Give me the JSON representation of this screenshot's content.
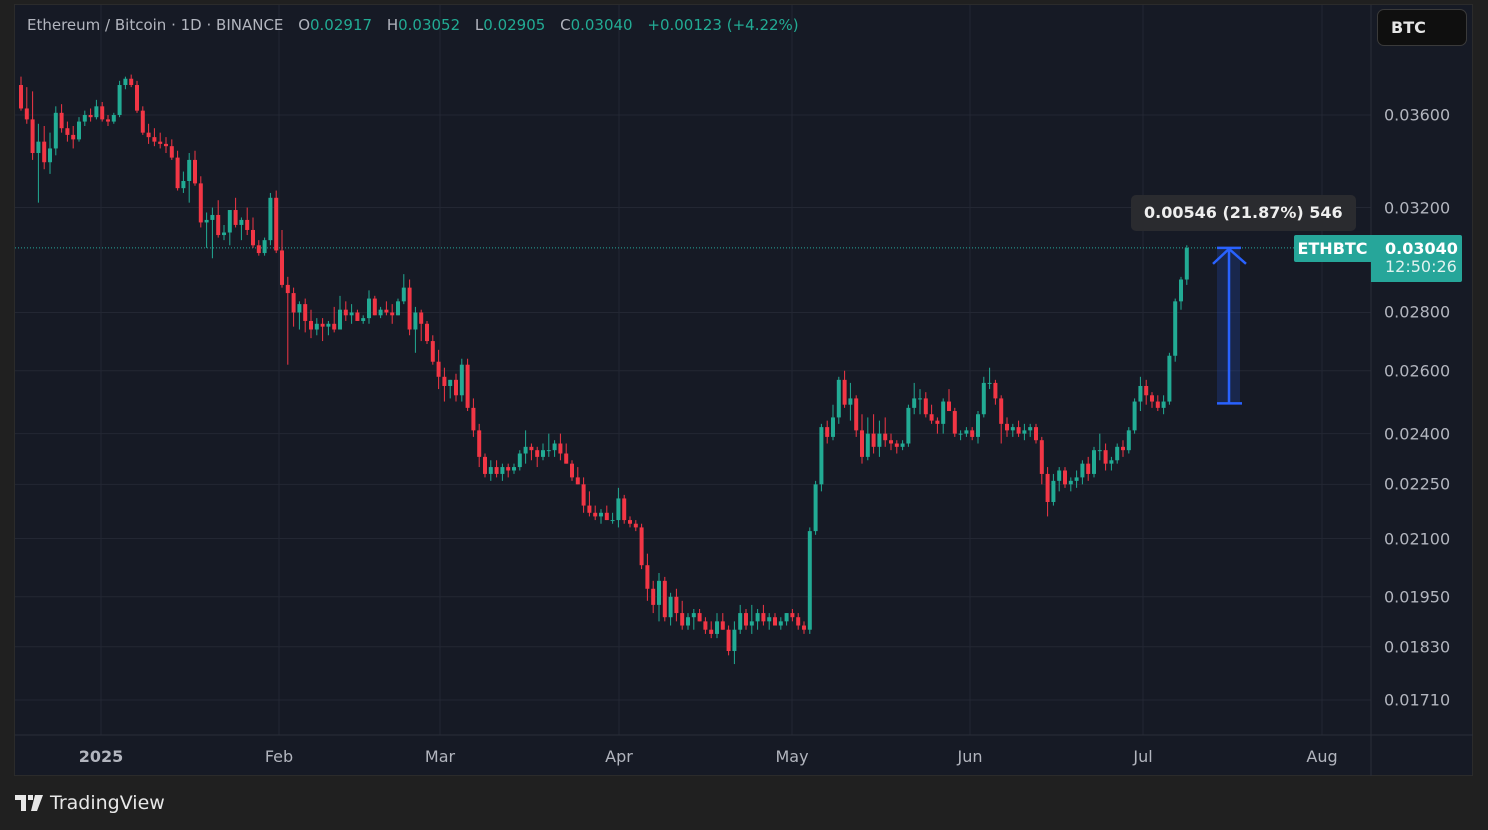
{
  "header": {
    "symbol_name": "Ethereum / Bitcoin",
    "interval": "1D",
    "exchange": "BINANCE",
    "separator": " · ",
    "open_label": "O",
    "open": "0.02917",
    "high_label": "H",
    "high": "0.03052",
    "low_label": "L",
    "low": "0.02905",
    "close_label": "C",
    "close": "0.03040",
    "change": "+0.00123 (+4.22%)"
  },
  "currency_button": {
    "label": "BTC"
  },
  "price_axis": {
    "ticks": [
      "0.03600",
      "0.03200",
      "0.02800",
      "0.02600",
      "0.02400",
      "0.02250",
      "0.02100",
      "0.01950",
      "0.01830",
      "0.01710"
    ]
  },
  "time_axis": {
    "ticks": [
      {
        "label": "2025",
        "bold": true
      },
      {
        "label": "Feb",
        "bold": false
      },
      {
        "label": "Mar",
        "bold": false
      },
      {
        "label": "Apr",
        "bold": false
      },
      {
        "label": "May",
        "bold": false
      },
      {
        "label": "Jun",
        "bold": false
      },
      {
        "label": "Jul",
        "bold": false
      },
      {
        "label": "Aug",
        "bold": false
      }
    ]
  },
  "last_price": {
    "symbol": "ETHBTC",
    "price": "0.03040",
    "countdown": "12:50:26"
  },
  "measure_tool": {
    "label": "0.00546 (21.87%) 546",
    "from_price": 0.02494,
    "to_price": 0.0304
  },
  "branding": {
    "label": "TradingView"
  },
  "colors": {
    "up": "#22ab94",
    "down": "#f23645",
    "background": "#161a25",
    "grid": "#232733",
    "measure": "#2962ff",
    "last_price": "#26a69a"
  },
  "chart_data": {
    "type": "candlestick",
    "title": "Ethereum / Bitcoin · 1D · BINANCE",
    "xlabel": "",
    "ylabel": "BTC",
    "ylim": [
      0.0165,
      0.0385
    ],
    "y_scale": "log",
    "grid": true,
    "x_ticks": [
      "2025",
      "Feb",
      "Mar",
      "Apr",
      "May",
      "Jun",
      "Jul",
      "Aug"
    ],
    "y_ticks": [
      0.036,
      0.032,
      0.028,
      0.026,
      0.024,
      0.0225,
      0.021,
      0.0195,
      0.0183,
      0.0171
    ],
    "start_date": "2024-12-17",
    "columns": [
      "open",
      "high",
      "low",
      "close"
    ],
    "ohlc": [
      [
        0.0374,
        0.0378,
        0.0362,
        0.0363
      ],
      [
        0.0363,
        0.0373,
        0.0356,
        0.0358
      ],
      [
        0.0358,
        0.0371,
        0.034,
        0.0343
      ],
      [
        0.0343,
        0.0356,
        0.0322,
        0.0348
      ],
      [
        0.0348,
        0.0355,
        0.0336,
        0.0339
      ],
      [
        0.0339,
        0.0352,
        0.0334,
        0.0345
      ],
      [
        0.0345,
        0.0364,
        0.0342,
        0.0361
      ],
      [
        0.0361,
        0.0365,
        0.0352,
        0.0354
      ],
      [
        0.0354,
        0.0357,
        0.0348,
        0.0351
      ],
      [
        0.0351,
        0.0355,
        0.0345,
        0.0349
      ],
      [
        0.0349,
        0.0359,
        0.0348,
        0.0357
      ],
      [
        0.0357,
        0.0362,
        0.0355,
        0.036
      ],
      [
        0.036,
        0.0363,
        0.0357,
        0.0359
      ],
      [
        0.0359,
        0.0367,
        0.0358,
        0.0364
      ],
      [
        0.0364,
        0.0366,
        0.0357,
        0.0358
      ],
      [
        0.0358,
        0.036,
        0.0355,
        0.0357
      ],
      [
        0.0357,
        0.0361,
        0.0356,
        0.036
      ],
      [
        0.036,
        0.0376,
        0.0359,
        0.0374
      ],
      [
        0.0374,
        0.0378,
        0.0372,
        0.0377
      ],
      [
        0.0377,
        0.0379,
        0.0373,
        0.0374
      ],
      [
        0.0374,
        0.0376,
        0.0361,
        0.0362
      ],
      [
        0.0362,
        0.0364,
        0.0351,
        0.0352
      ],
      [
        0.0352,
        0.0356,
        0.0347,
        0.035
      ],
      [
        0.035,
        0.0354,
        0.0346,
        0.0348
      ],
      [
        0.0348,
        0.0352,
        0.0345,
        0.0347
      ],
      [
        0.0347,
        0.035,
        0.0343,
        0.0346
      ],
      [
        0.0346,
        0.0349,
        0.034,
        0.0341
      ],
      [
        0.0341,
        0.0344,
        0.0327,
        0.0328
      ],
      [
        0.0328,
        0.0335,
        0.0326,
        0.0331
      ],
      [
        0.0331,
        0.0343,
        0.0322,
        0.034
      ],
      [
        0.034,
        0.0344,
        0.0329,
        0.033
      ],
      [
        0.033,
        0.0333,
        0.0312,
        0.0314
      ],
      [
        0.0314,
        0.0318,
        0.0304,
        0.0315
      ],
      [
        0.0315,
        0.032,
        0.03,
        0.0317
      ],
      [
        0.0317,
        0.0323,
        0.0308,
        0.0309
      ],
      [
        0.0309,
        0.0313,
        0.0307,
        0.031
      ],
      [
        0.031,
        0.0319,
        0.0305,
        0.0319
      ],
      [
        0.0319,
        0.0324,
        0.0312,
        0.0313
      ],
      [
        0.0313,
        0.0316,
        0.0307,
        0.0315
      ],
      [
        0.0315,
        0.032,
        0.0309,
        0.0311
      ],
      [
        0.0311,
        0.0316,
        0.0304,
        0.0305
      ],
      [
        0.0305,
        0.0307,
        0.0301,
        0.0302
      ],
      [
        0.0302,
        0.0308,
        0.0301,
        0.0307
      ],
      [
        0.0307,
        0.0326,
        0.0305,
        0.0324
      ],
      [
        0.0324,
        0.0327,
        0.0302,
        0.0303
      ],
      [
        0.0303,
        0.0311,
        0.0289,
        0.029
      ],
      [
        0.029,
        0.0293,
        0.0262,
        0.0287
      ],
      [
        0.0287,
        0.0289,
        0.0275,
        0.028
      ],
      [
        0.028,
        0.0284,
        0.0274,
        0.0283
      ],
      [
        0.0283,
        0.0285,
        0.0273,
        0.0277
      ],
      [
        0.0277,
        0.0281,
        0.0271,
        0.0274
      ],
      [
        0.0274,
        0.0278,
        0.0272,
        0.0276
      ],
      [
        0.0276,
        0.0278,
        0.027,
        0.0275
      ],
      [
        0.0275,
        0.0277,
        0.0272,
        0.0276
      ],
      [
        0.0276,
        0.0282,
        0.0273,
        0.0274
      ],
      [
        0.0274,
        0.0286,
        0.0274,
        0.0281
      ],
      [
        0.0281,
        0.0284,
        0.0277,
        0.0279
      ],
      [
        0.0279,
        0.0283,
        0.0276,
        0.028
      ],
      [
        0.028,
        0.0281,
        0.0277,
        0.0277
      ],
      [
        0.0277,
        0.0279,
        0.0276,
        0.0278
      ],
      [
        0.0278,
        0.0288,
        0.0276,
        0.0285
      ],
      [
        0.0285,
        0.0286,
        0.0279,
        0.0279
      ],
      [
        0.0279,
        0.0282,
        0.0278,
        0.0281
      ],
      [
        0.0281,
        0.0284,
        0.0279,
        0.028
      ],
      [
        0.028,
        0.0283,
        0.0276,
        0.0279
      ],
      [
        0.0279,
        0.0285,
        0.0279,
        0.0284
      ],
      [
        0.0284,
        0.0294,
        0.0283,
        0.0289
      ],
      [
        0.0289,
        0.0292,
        0.0272,
        0.0274
      ],
      [
        0.0274,
        0.0282,
        0.0266,
        0.028
      ],
      [
        0.028,
        0.0281,
        0.027,
        0.0276
      ],
      [
        0.0276,
        0.0277,
        0.0269,
        0.027
      ],
      [
        0.027,
        0.0272,
        0.0262,
        0.0263
      ],
      [
        0.0263,
        0.0267,
        0.0254,
        0.0258
      ],
      [
        0.0258,
        0.0261,
        0.025,
        0.0255
      ],
      [
        0.0255,
        0.0257,
        0.0251,
        0.0257
      ],
      [
        0.0257,
        0.0259,
        0.025,
        0.0252
      ],
      [
        0.0252,
        0.0264,
        0.025,
        0.0262
      ],
      [
        0.0262,
        0.0264,
        0.0247,
        0.0248
      ],
      [
        0.0248,
        0.0251,
        0.0239,
        0.0241
      ],
      [
        0.0241,
        0.0243,
        0.023,
        0.0233
      ],
      [
        0.0233,
        0.0234,
        0.0227,
        0.0228
      ],
      [
        0.0228,
        0.0232,
        0.0226,
        0.023
      ],
      [
        0.023,
        0.0232,
        0.0227,
        0.0228
      ],
      [
        0.0228,
        0.0231,
        0.0226,
        0.023
      ],
      [
        0.023,
        0.0231,
        0.0227,
        0.0229
      ],
      [
        0.0229,
        0.0231,
        0.0228,
        0.023
      ],
      [
        0.023,
        0.0235,
        0.0229,
        0.0234
      ],
      [
        0.0234,
        0.0241,
        0.0231,
        0.0236
      ],
      [
        0.0236,
        0.0237,
        0.0232,
        0.0235
      ],
      [
        0.0235,
        0.0236,
        0.023,
        0.0233
      ],
      [
        0.0233,
        0.0237,
        0.0232,
        0.0235
      ],
      [
        0.0235,
        0.024,
        0.0233,
        0.0235
      ],
      [
        0.0235,
        0.0238,
        0.0233,
        0.0237
      ],
      [
        0.0237,
        0.024,
        0.0232,
        0.0234
      ],
      [
        0.0234,
        0.0237,
        0.0231,
        0.0231
      ],
      [
        0.0231,
        0.0232,
        0.0226,
        0.0227
      ],
      [
        0.0227,
        0.023,
        0.0225,
        0.0225
      ],
      [
        0.0225,
        0.0227,
        0.0217,
        0.0219
      ],
      [
        0.0219,
        0.0223,
        0.0216,
        0.0217
      ],
      [
        0.0217,
        0.0219,
        0.0215,
        0.0216
      ],
      [
        0.0216,
        0.0218,
        0.0214,
        0.0217
      ],
      [
        0.0217,
        0.0219,
        0.0215,
        0.0215
      ],
      [
        0.0215,
        0.0217,
        0.0214,
        0.0215
      ],
      [
        0.0215,
        0.0224,
        0.0213,
        0.0221
      ],
      [
        0.0221,
        0.0222,
        0.0214,
        0.0215
      ],
      [
        0.0215,
        0.0216,
        0.0213,
        0.0214
      ],
      [
        0.0214,
        0.0215,
        0.0212,
        0.0213
      ],
      [
        0.0213,
        0.0214,
        0.0202,
        0.0203
      ],
      [
        0.0203,
        0.0206,
        0.0194,
        0.0197
      ],
      [
        0.0197,
        0.0199,
        0.0191,
        0.0193
      ],
      [
        0.0193,
        0.0201,
        0.0189,
        0.0199
      ],
      [
        0.0199,
        0.02,
        0.0189,
        0.019
      ],
      [
        0.019,
        0.0196,
        0.0188,
        0.0195
      ],
      [
        0.0195,
        0.0197,
        0.0189,
        0.0191
      ],
      [
        0.0191,
        0.0194,
        0.0187,
        0.0188
      ],
      [
        0.0188,
        0.0191,
        0.0187,
        0.019
      ],
      [
        0.019,
        0.0192,
        0.0187,
        0.0191
      ],
      [
        0.0191,
        0.0192,
        0.0189,
        0.0189
      ],
      [
        0.0189,
        0.019,
        0.0186,
        0.0187
      ],
      [
        0.0187,
        0.0189,
        0.0185,
        0.0186
      ],
      [
        0.0186,
        0.0191,
        0.0185,
        0.0189
      ],
      [
        0.0189,
        0.0191,
        0.0187,
        0.0187
      ],
      [
        0.0187,
        0.0188,
        0.0181,
        0.0182
      ],
      [
        0.0182,
        0.0189,
        0.0179,
        0.0187
      ],
      [
        0.0187,
        0.0193,
        0.0186,
        0.0191
      ],
      [
        0.0191,
        0.0192,
        0.0187,
        0.0188
      ],
      [
        0.0188,
        0.0193,
        0.0186,
        0.0189
      ],
      [
        0.0189,
        0.0192,
        0.0187,
        0.0191
      ],
      [
        0.0191,
        0.0193,
        0.0188,
        0.0189
      ],
      [
        0.0189,
        0.0191,
        0.0187,
        0.019
      ],
      [
        0.019,
        0.0191,
        0.0188,
        0.0188
      ],
      [
        0.0188,
        0.019,
        0.0187,
        0.0189
      ],
      [
        0.0189,
        0.0191,
        0.0188,
        0.0191
      ],
      [
        0.0191,
        0.0192,
        0.0189,
        0.019
      ],
      [
        0.019,
        0.0191,
        0.0187,
        0.0188
      ],
      [
        0.0188,
        0.0189,
        0.0186,
        0.0187
      ],
      [
        0.0187,
        0.0213,
        0.0186,
        0.0212
      ],
      [
        0.0212,
        0.0226,
        0.0211,
        0.0225
      ],
      [
        0.0225,
        0.0243,
        0.0223,
        0.0242
      ],
      [
        0.0242,
        0.0244,
        0.0237,
        0.0239
      ],
      [
        0.0239,
        0.0249,
        0.0238,
        0.0245
      ],
      [
        0.0245,
        0.0258,
        0.0243,
        0.0257
      ],
      [
        0.0257,
        0.026,
        0.0248,
        0.0249
      ],
      [
        0.0249,
        0.0256,
        0.0244,
        0.0251
      ],
      [
        0.0251,
        0.0252,
        0.0239,
        0.0241
      ],
      [
        0.0241,
        0.0246,
        0.0231,
        0.0233
      ],
      [
        0.0233,
        0.0245,
        0.0232,
        0.024
      ],
      [
        0.024,
        0.0246,
        0.0234,
        0.0236
      ],
      [
        0.0236,
        0.0244,
        0.0233,
        0.024
      ],
      [
        0.024,
        0.0245,
        0.0236,
        0.0238
      ],
      [
        0.0238,
        0.024,
        0.0235,
        0.0237
      ],
      [
        0.0237,
        0.0238,
        0.0234,
        0.0236
      ],
      [
        0.0236,
        0.0238,
        0.0235,
        0.0237
      ],
      [
        0.0237,
        0.0249,
        0.0236,
        0.0248
      ],
      [
        0.0248,
        0.0256,
        0.0246,
        0.0251
      ],
      [
        0.0251,
        0.0254,
        0.0246,
        0.0251
      ],
      [
        0.0251,
        0.0253,
        0.0245,
        0.0246
      ],
      [
        0.0246,
        0.0249,
        0.0243,
        0.0244
      ],
      [
        0.0244,
        0.0245,
        0.024,
        0.0243
      ],
      [
        0.0243,
        0.0251,
        0.024,
        0.025
      ],
      [
        0.025,
        0.0254,
        0.0247,
        0.0247
      ],
      [
        0.0247,
        0.0248,
        0.0239,
        0.024
      ],
      [
        0.024,
        0.0241,
        0.0238,
        0.024
      ],
      [
        0.024,
        0.0242,
        0.0239,
        0.0241
      ],
      [
        0.0241,
        0.0242,
        0.0238,
        0.0239
      ],
      [
        0.0239,
        0.0247,
        0.0237,
        0.0246
      ],
      [
        0.0246,
        0.0258,
        0.0245,
        0.0256
      ],
      [
        0.0256,
        0.0261,
        0.0254,
        0.0256
      ],
      [
        0.0256,
        0.0257,
        0.0249,
        0.0251
      ],
      [
        0.0251,
        0.0252,
        0.0237,
        0.0243
      ],
      [
        0.0243,
        0.0245,
        0.0239,
        0.0241
      ],
      [
        0.0241,
        0.0243,
        0.0239,
        0.0242
      ],
      [
        0.0242,
        0.0244,
        0.0239,
        0.024
      ],
      [
        0.024,
        0.0243,
        0.0238,
        0.0241
      ],
      [
        0.0241,
        0.0243,
        0.0239,
        0.0242
      ],
      [
        0.0242,
        0.0243,
        0.0237,
        0.0238
      ],
      [
        0.0238,
        0.0239,
        0.0225,
        0.0228
      ],
      [
        0.0228,
        0.023,
        0.0216,
        0.022
      ],
      [
        0.022,
        0.0228,
        0.0219,
        0.0226
      ],
      [
        0.0226,
        0.023,
        0.0223,
        0.0229
      ],
      [
        0.0229,
        0.023,
        0.0224,
        0.0225
      ],
      [
        0.0225,
        0.0227,
        0.0223,
        0.0226
      ],
      [
        0.0226,
        0.0229,
        0.0224,
        0.0227
      ],
      [
        0.0227,
        0.0232,
        0.0225,
        0.0231
      ],
      [
        0.0231,
        0.0233,
        0.0226,
        0.0228
      ],
      [
        0.0228,
        0.0236,
        0.0227,
        0.0235
      ],
      [
        0.0235,
        0.024,
        0.0232,
        0.0235
      ],
      [
        0.0235,
        0.0237,
        0.0229,
        0.0231
      ],
      [
        0.0231,
        0.0233,
        0.0229,
        0.0232
      ],
      [
        0.0232,
        0.0237,
        0.0231,
        0.0236
      ],
      [
        0.0236,
        0.0238,
        0.0233,
        0.0235
      ],
      [
        0.0235,
        0.0242,
        0.0234,
        0.0241
      ],
      [
        0.0241,
        0.0251,
        0.024,
        0.025
      ],
      [
        0.025,
        0.0258,
        0.0247,
        0.0255
      ],
      [
        0.0255,
        0.0257,
        0.0249,
        0.0252
      ],
      [
        0.0252,
        0.0253,
        0.0248,
        0.025
      ],
      [
        0.025,
        0.0252,
        0.0247,
        0.0248
      ],
      [
        0.0248,
        0.0252,
        0.0246,
        0.025
      ],
      [
        0.025,
        0.0266,
        0.0249,
        0.0265
      ],
      [
        0.0265,
        0.0285,
        0.0263,
        0.0284
      ],
      [
        0.0284,
        0.0293,
        0.0281,
        0.0292
      ],
      [
        0.0292,
        0.0305,
        0.029,
        0.0304
      ]
    ]
  }
}
